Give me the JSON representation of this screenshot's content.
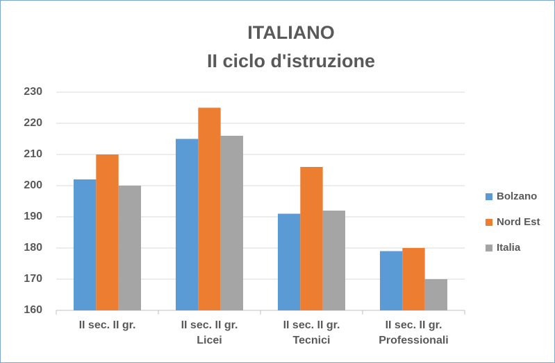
{
  "chart_data": {
    "type": "bar",
    "title": "ITALIANO",
    "subtitle": "II ciclo d'istruzione",
    "categories": [
      "II sec. II gr.",
      "II sec. II gr.\nLicei",
      "II sec. II gr.\nTecnici",
      "II sec. II gr.\nProfessionali"
    ],
    "series": [
      {
        "name": "Bolzano",
        "color": "#5b9bd5",
        "values": [
          202,
          215,
          191,
          179
        ]
      },
      {
        "name": "Nord Est",
        "color": "#ed7d31",
        "values": [
          210,
          225,
          206,
          180
        ]
      },
      {
        "name": "Italia",
        "color": "#a5a5a5",
        "values": [
          200,
          216,
          192,
          170
        ]
      }
    ],
    "ylim": [
      160,
      230
    ],
    "yticks": [
      160,
      170,
      180,
      190,
      200,
      210,
      220,
      230
    ],
    "grid": true,
    "legend": "right"
  }
}
